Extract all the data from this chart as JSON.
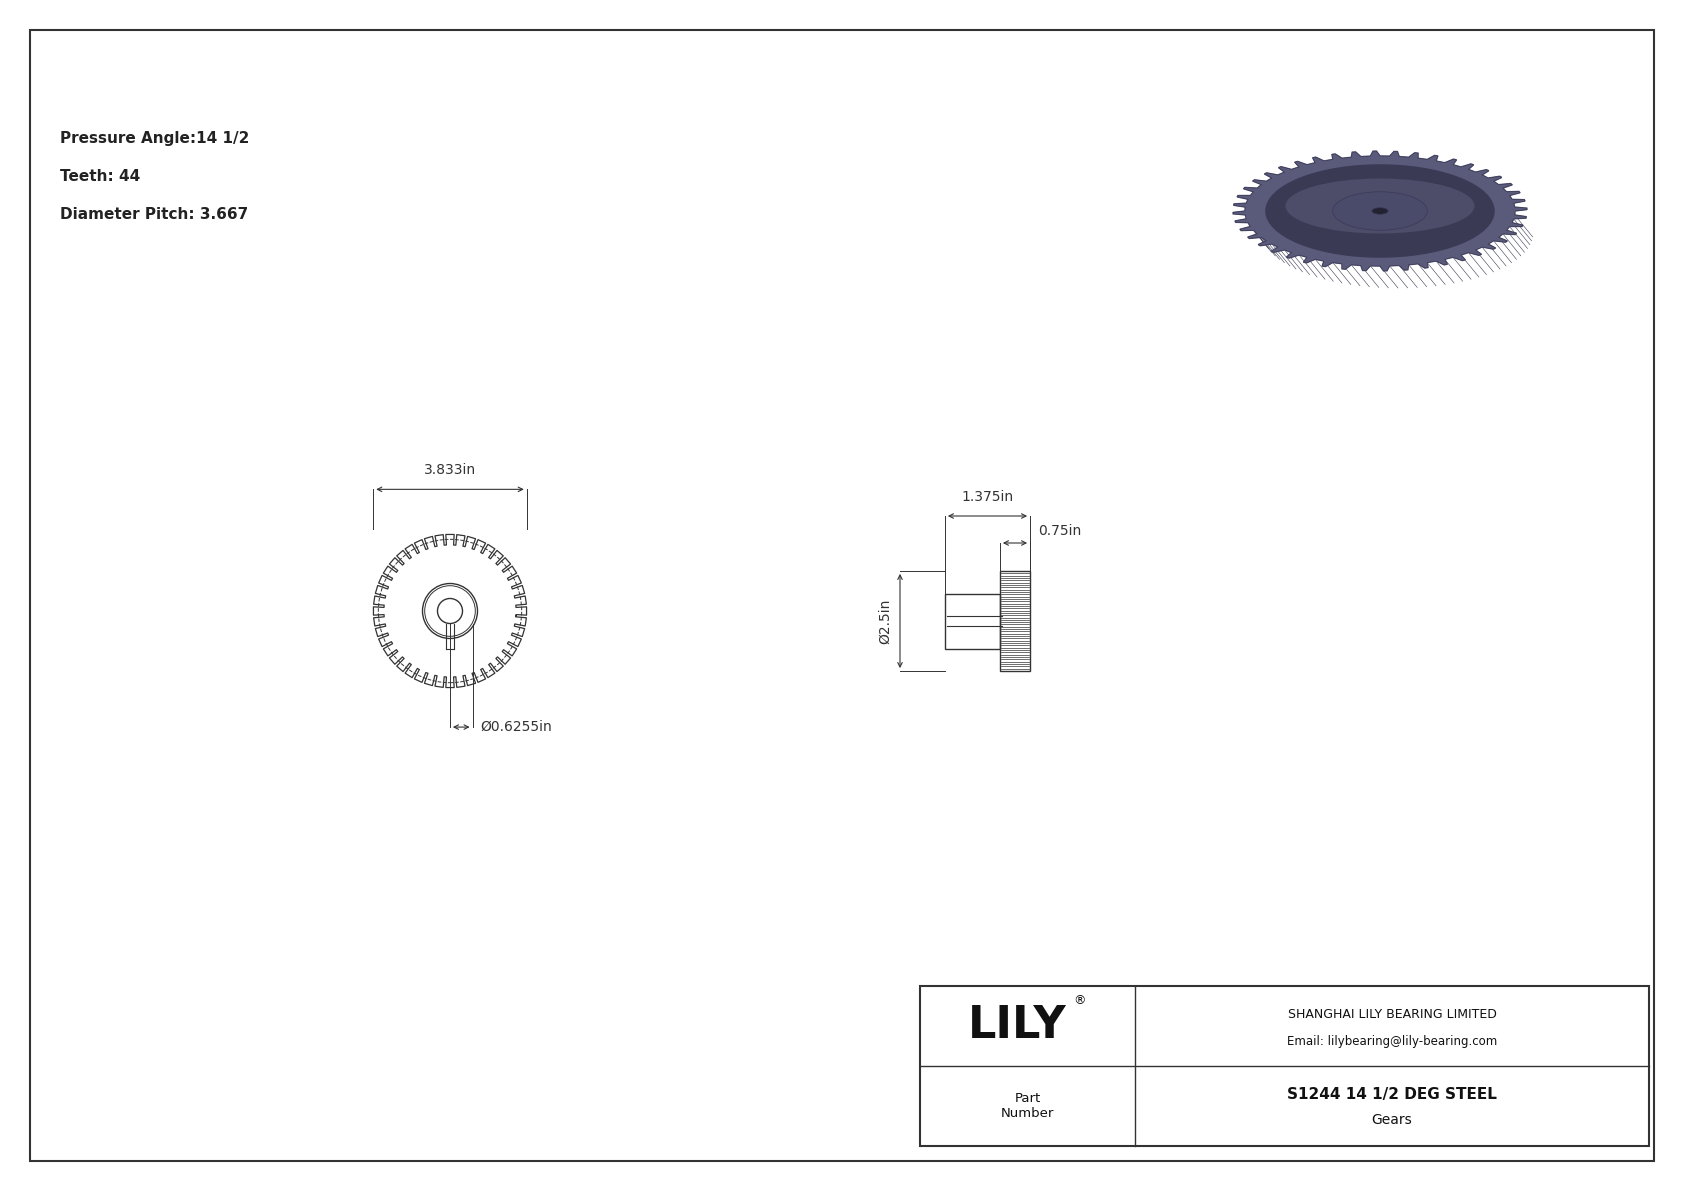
{
  "bg_color": "#ffffff",
  "line_color": "#333333",
  "dim_color": "#333333",
  "pressure_angle": "14 1/2",
  "teeth": "44",
  "diameter_pitch": "3.667",
  "bore_dia": "0.6255in",
  "outer_dia": "3.833in",
  "face_width": "0.75in",
  "hub_dia": "1.375in",
  "gear_od": "2.5in",
  "company": "SHANGHAI LILY BEARING LIMITED",
  "email": "Email: lilybearing@lily-bearing.com",
  "part_number_label": "Part\nNumber",
  "part_number_value": "S1244 14 1/2 DEG STEEL",
  "part_type": "Gears",
  "lily_text": "LILY",
  "n_teeth": 44
}
